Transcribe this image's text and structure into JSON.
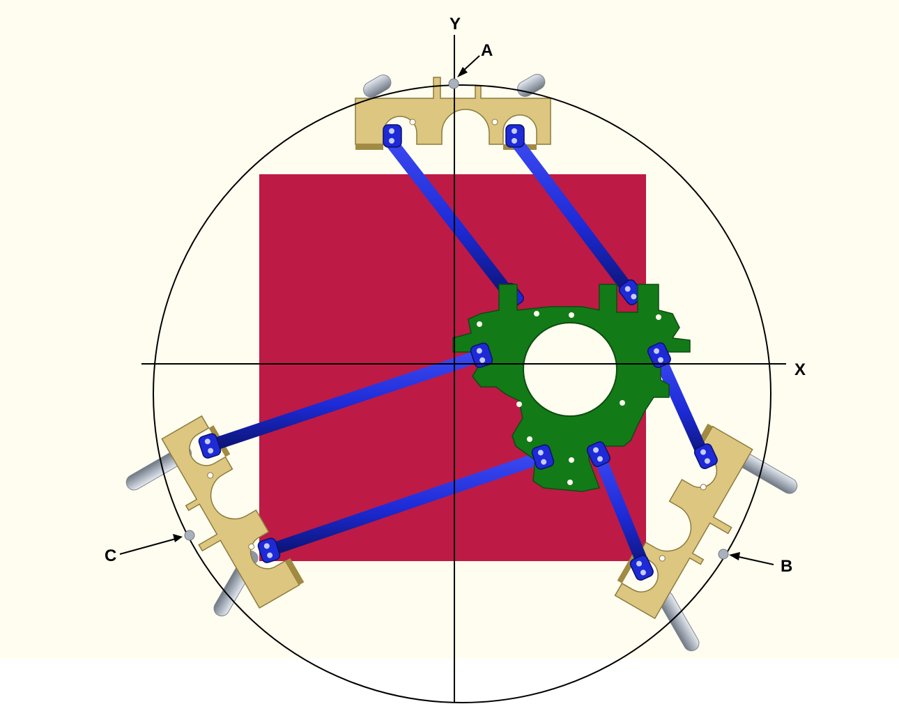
{
  "diagram": {
    "axes": {
      "x_label": "X",
      "y_label": "Y"
    },
    "points": [
      {
        "id": "A",
        "label": "A"
      },
      {
        "id": "B",
        "label": "B"
      },
      {
        "id": "C",
        "label": "C"
      }
    ],
    "colors": {
      "background": "#fefdf0",
      "workspace": "#bd1a46",
      "base_bracket": "#d8c27a",
      "links": "#1d2ad6",
      "platform": "#137a18",
      "rails": "#a9b1bc",
      "lines": "#000000"
    }
  }
}
